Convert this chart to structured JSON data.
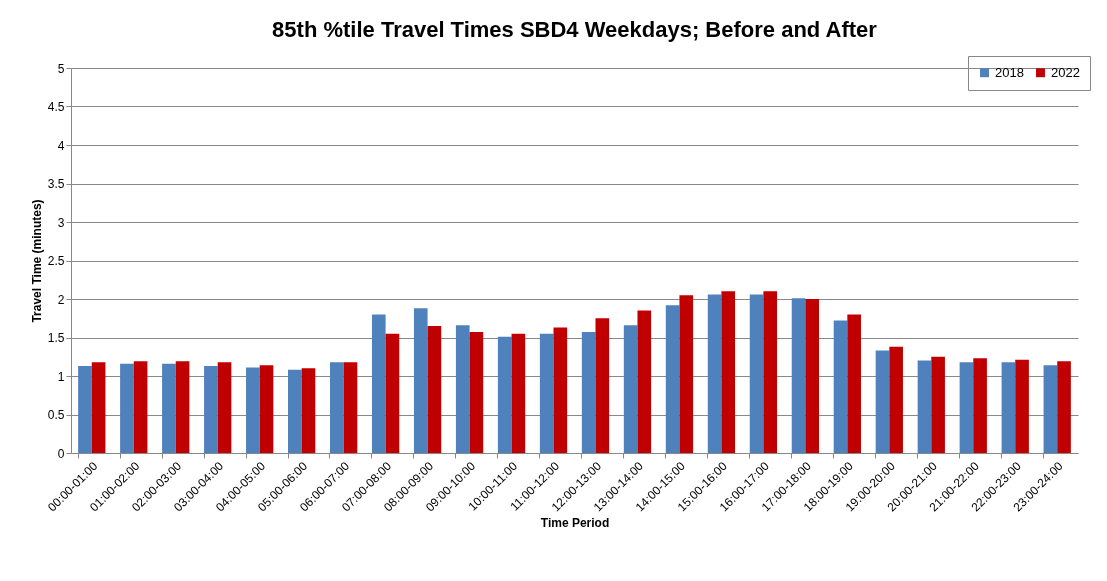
{
  "chart_data": {
    "type": "bar",
    "title": "85th %tile Travel Times SBD4 Weekdays; Before and After",
    "xlabel": "Time Period",
    "ylabel": "Travel Time (minutes)",
    "categories": [
      "00:00-01:00",
      "01:00-02:00",
      "02:00-03:00",
      "03:00-04:00",
      "04:00-05:00",
      "05:00-06:00",
      "06:00-07:00",
      "07:00-08:00",
      "08:00-09:00",
      "09:00-10:00",
      "10:00-11:00",
      "11:00-12:00",
      "12:00-13:00",
      "13:00-14:00",
      "14:00-15:00",
      "15:00-16:00",
      "16:00-17:00",
      "17:00-18:00",
      "18:00-19:00",
      "19:00-20:00",
      "20:00-21:00",
      "21:00-22:00",
      "22:00-23:00",
      "23:00-24:00"
    ],
    "series": [
      {
        "name": "2018",
        "color": "#4f81bd",
        "values": [
          1.13,
          1.16,
          1.16,
          1.13,
          1.11,
          1.08,
          1.18,
          1.8,
          1.88,
          1.66,
          1.51,
          1.55,
          1.57,
          1.66,
          1.92,
          2.06,
          2.06,
          2.01,
          1.72,
          1.33,
          1.2,
          1.18,
          1.18,
          1.14
        ]
      },
      {
        "name": "2022",
        "color": "#c00000",
        "values": [
          1.18,
          1.19,
          1.19,
          1.18,
          1.14,
          1.1,
          1.18,
          1.55,
          1.65,
          1.57,
          1.55,
          1.63,
          1.75,
          1.85,
          2.05,
          2.1,
          2.1,
          2.0,
          1.8,
          1.38,
          1.25,
          1.23,
          1.21,
          1.19
        ]
      }
    ],
    "ylim": [
      0,
      5
    ],
    "yticks": [
      0,
      0.5,
      1,
      1.5,
      2,
      2.5,
      3,
      3.5,
      4,
      4.5,
      5
    ],
    "grid": "y",
    "legend": "top right"
  }
}
